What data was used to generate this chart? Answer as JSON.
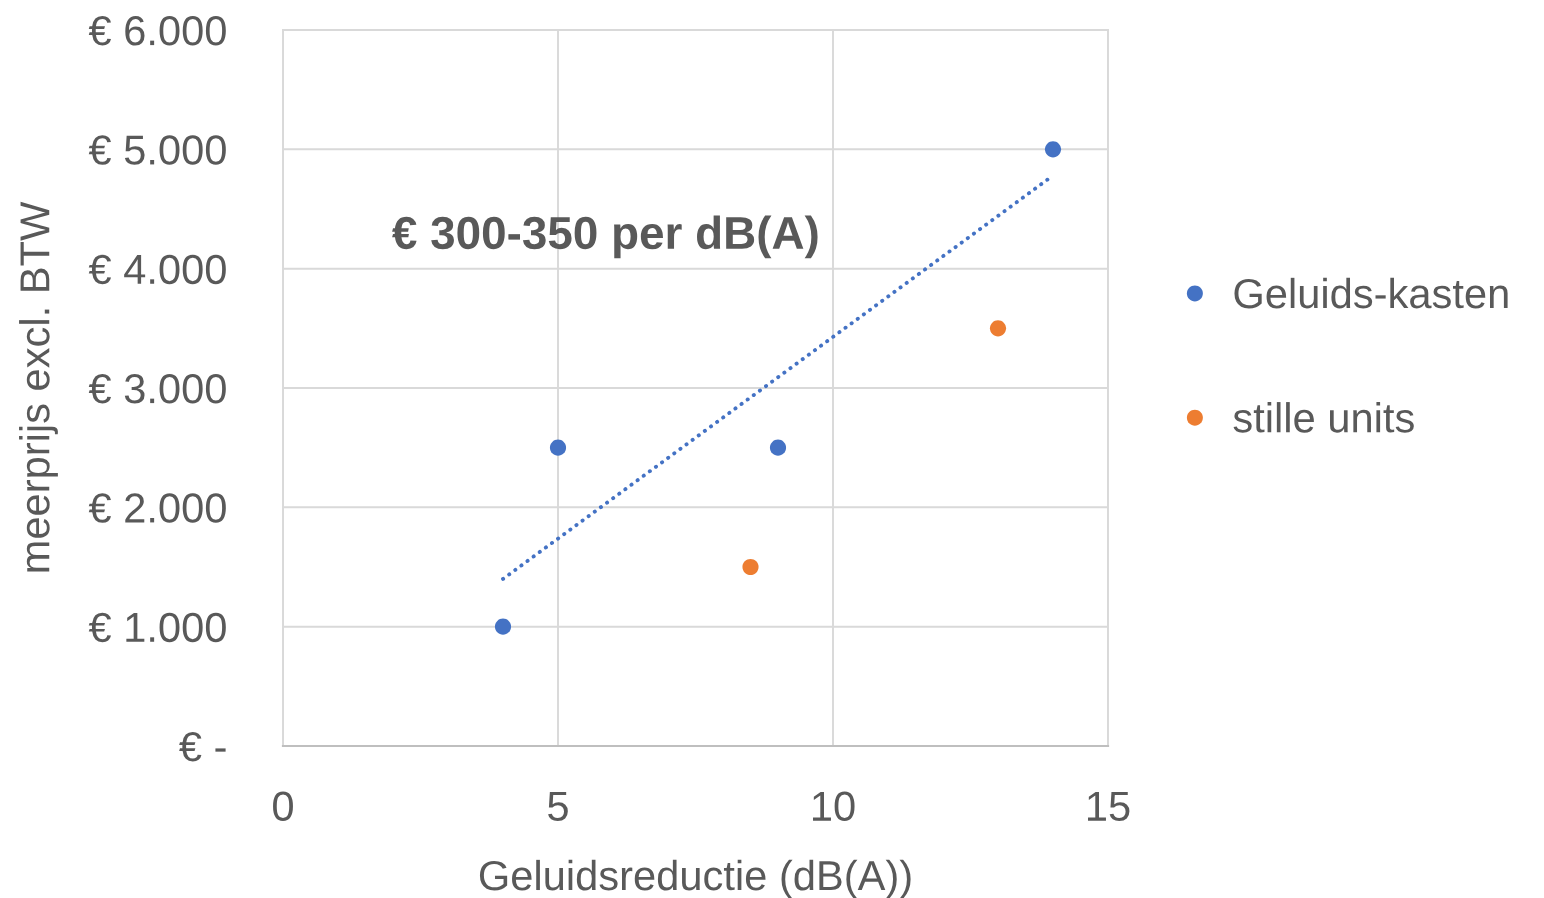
{
  "chart_data": {
    "type": "scatter",
    "xlabel": "Geluidsreductie (dB(A))",
    "ylabel": "meerprijs excl. BTW",
    "annotations": [
      "€ 300-350 per dB(A)"
    ],
    "xlim": [
      0,
      15
    ],
    "xticks": [
      0,
      5,
      10,
      15
    ],
    "ylim": [
      0,
      6000
    ],
    "yticks": [
      {
        "value": 0,
        "label": "€ -"
      },
      {
        "value": 1000,
        "label": "€ 1.000"
      },
      {
        "value": 2000,
        "label": "€ 2.000"
      },
      {
        "value": 3000,
        "label": "€ 3.000"
      },
      {
        "value": 4000,
        "label": "€ 4.000"
      },
      {
        "value": 5000,
        "label": "€ 5.000"
      },
      {
        "value": 6000,
        "label": "€ 6.000"
      }
    ],
    "series": [
      {
        "name": "Geluids-kasten",
        "color": "#4472c4",
        "x": [
          4,
          5,
          9,
          14
        ],
        "values": [
          1000,
          2500,
          2500,
          5000
        ]
      },
      {
        "name": "stille units",
        "color": "#ed7d31",
        "x": [
          8.5,
          13
        ],
        "values": [
          1500,
          3500
        ]
      },
      {
        "type": "line",
        "color": "#4472c4",
        "x": [
          4,
          14
        ],
        "values": [
          1400,
          4780
        ],
        "line_style": "dotted",
        "marker": "none"
      }
    ],
    "marker": "circle",
    "grid": true,
    "legend": "right"
  }
}
